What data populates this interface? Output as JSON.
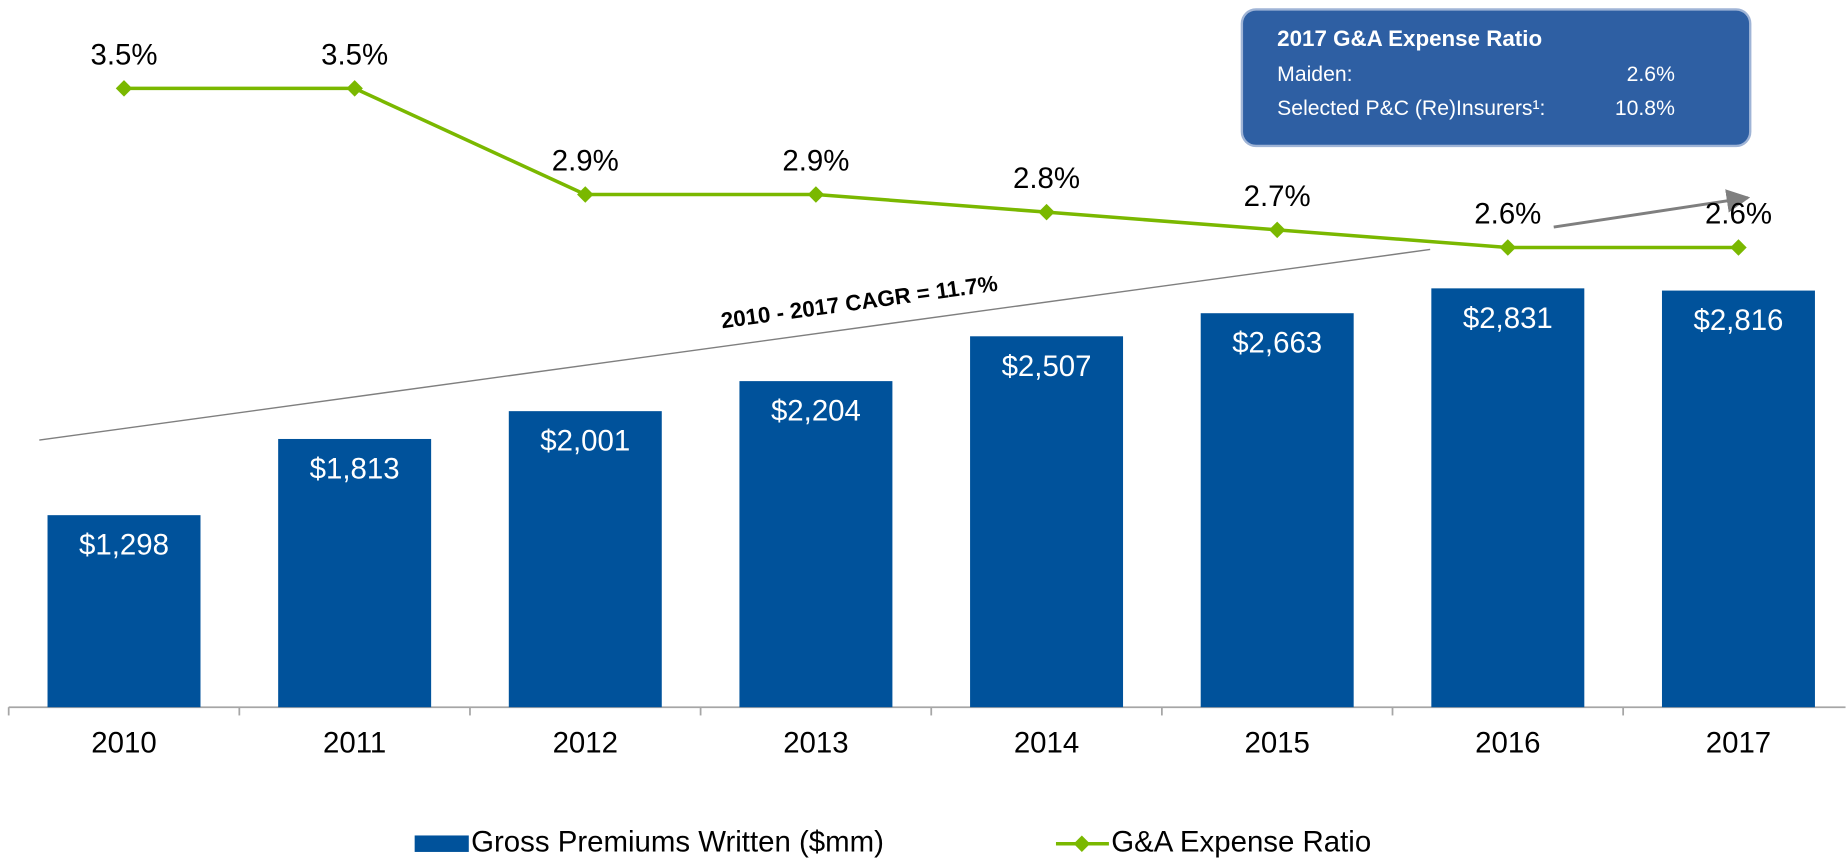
{
  "chart_data": {
    "type": "bar",
    "categories": [
      "2010",
      "2011",
      "2012",
      "2013",
      "2014",
      "2015",
      "2016",
      "2017"
    ],
    "ylim": [
      0,
      4780
    ],
    "y2lim": [
      0,
      4
    ],
    "series": [
      {
        "name": "Gross Premiums Written ($mm)",
        "type": "bar",
        "color": "#00529b",
        "values": [
          1298,
          1813,
          2001,
          2204,
          2507,
          2663,
          2831,
          2816
        ],
        "value_labels": [
          "$1,298",
          "$1,813",
          "$2,001",
          "$2,204",
          "$2,507",
          "$2,663",
          "$2,831",
          "$2,816"
        ]
      },
      {
        "name": "G&A Expense Ratio",
        "type": "line",
        "axis": "y2",
        "color": "#7ab800",
        "values": [
          3.5,
          3.5,
          2.9,
          2.9,
          2.8,
          2.7,
          2.6,
          2.6
        ],
        "value_labels": [
          "3.5%",
          "3.5%",
          "2.9%",
          "2.9%",
          "2.8%",
          "2.7%",
          "2.6%",
          "2.6%"
        ]
      }
    ],
    "annotations": {
      "cagr": "2010 - 2017 CAGR = 11.7%",
      "box": {
        "title": "2017 G&A Expense Ratio",
        "rows": [
          {
            "label": "Maiden:",
            "value": "2.6%"
          },
          {
            "label": "Selected P&C (Re)Insurers¹:",
            "value": "10.8%"
          }
        ]
      }
    },
    "legend": "bottom"
  }
}
